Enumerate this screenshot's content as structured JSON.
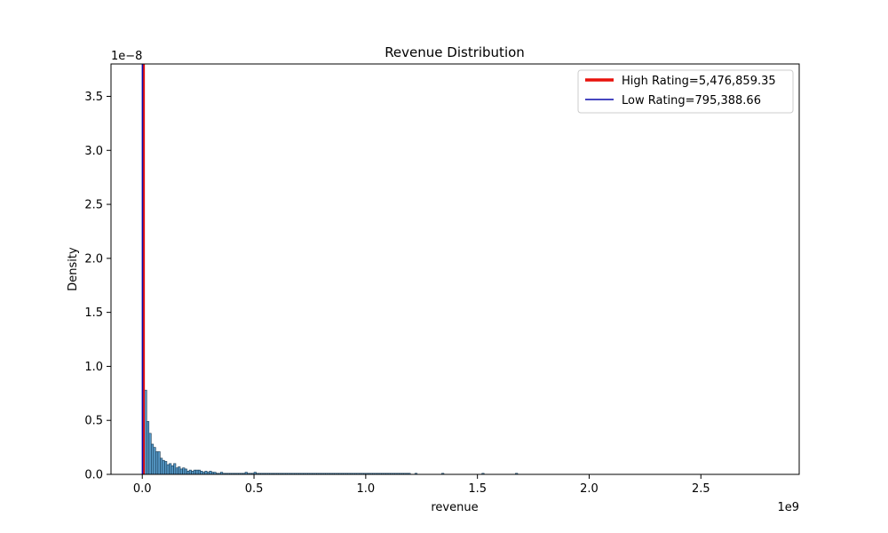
{
  "chart_data": {
    "type": "bar",
    "title": "Revenue Distribution",
    "xlabel": "revenue",
    "ylabel": "Density",
    "x_multiplier_label": "1e9",
    "y_multiplier_label": "1e−8",
    "xlim": [
      -0.14,
      2.94
    ],
    "ylim": [
      0,
      3.8
    ],
    "x_ticks": [
      0.0,
      0.5,
      1.0,
      1.5,
      2.0,
      2.5
    ],
    "x_tick_labels": [
      "0.0",
      "0.5",
      "1.0",
      "1.5",
      "2.0",
      "2.5"
    ],
    "y_ticks": [
      0.0,
      0.5,
      1.0,
      1.5,
      2.0,
      2.5,
      3.0,
      3.5
    ],
    "y_tick_labels": [
      "0.0",
      "0.5",
      "1.0",
      "1.5",
      "2.0",
      "2.5",
      "3.0",
      "3.5"
    ],
    "bin_start": 0.0,
    "bin_width": 0.01,
    "histogram_density": [
      3.8,
      0.78,
      0.49,
      0.38,
      0.28,
      0.25,
      0.21,
      0.21,
      0.15,
      0.13,
      0.12,
      0.09,
      0.1,
      0.08,
      0.1,
      0.06,
      0.07,
      0.05,
      0.06,
      0.05,
      0.03,
      0.04,
      0.03,
      0.04,
      0.04,
      0.04,
      0.03,
      0.02,
      0.03,
      0.02,
      0.03,
      0.02,
      0.02,
      0.01,
      0.01,
      0.02,
      0.01,
      0.01,
      0.01,
      0.01,
      0.01,
      0.01,
      0.01,
      0.01,
      0.01,
      0.01,
      0.02,
      0.01,
      0.01,
      0.01,
      0.02,
      0.01,
      0.01,
      0.01,
      0.01,
      0.01,
      0.01,
      0.01,
      0.01,
      0.01,
      0.01,
      0.01,
      0.01,
      0.01,
      0.01,
      0.01,
      0.01,
      0.01,
      0.01,
      0.01,
      0.01,
      0.01,
      0.01,
      0.01,
      0.01,
      0.01,
      0.01,
      0.01,
      0.01,
      0.01,
      0.01,
      0.01,
      0.01,
      0.01,
      0.01,
      0.01,
      0.01,
      0.01,
      0.01,
      0.01,
      0.01,
      0.01,
      0.01,
      0.01,
      0.01,
      0.01,
      0.01,
      0.01,
      0.01,
      0.01,
      0.01,
      0.01,
      0.01,
      0.01,
      0.01,
      0.01,
      0.01,
      0.01,
      0.01,
      0.01,
      0.01,
      0.01,
      0.01,
      0.01,
      0.01,
      0.01,
      0.01,
      0.01,
      0.01,
      0.01
    ],
    "sparse_bins": [
      {
        "x": 1.22,
        "density": 0.01
      },
      {
        "x": 1.34,
        "density": 0.01
      },
      {
        "x": 1.52,
        "density": 0.01
      },
      {
        "x": 1.67,
        "density": 0.01
      }
    ],
    "vertical_lines": [
      {
        "name": "High Rating=5,476,859.35",
        "x": 0.005476859,
        "color": "#e8120c",
        "width": "thick"
      },
      {
        "name": "Low Rating=795,388.66",
        "x": 0.000795389,
        "color": "#0a0aab",
        "width": "thin"
      }
    ],
    "bar_color": "#1f77b4",
    "legend_position": "upper right",
    "grid": false
  }
}
